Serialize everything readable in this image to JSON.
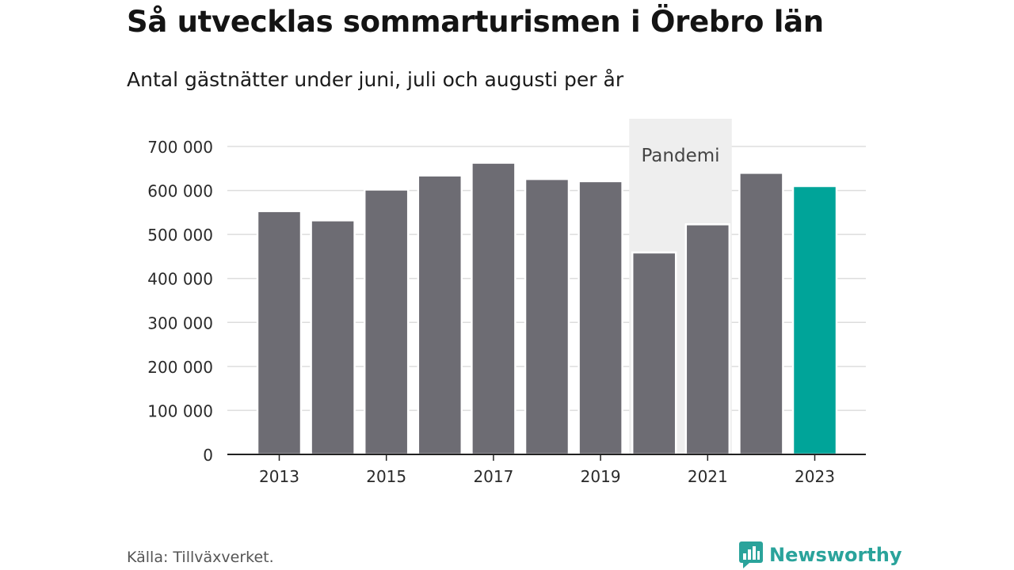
{
  "header": {
    "title": "Så utvecklas sommarturismen i Örebro län",
    "subtitle": "Antal gästnätter under juni, juli och augusti per år"
  },
  "footer": {
    "source": "Källa: Tillväxverket.",
    "brand": "Newsworthy"
  },
  "colors": {
    "bar": "#6d6c73",
    "highlight": "#00a499",
    "shade": "#eeeeee",
    "grid": "#dddddd",
    "axis": "#222222",
    "brand": "#2aa39b"
  },
  "chart_data": {
    "type": "bar",
    "categories": [
      "2013",
      "2014",
      "2015",
      "2016",
      "2017",
      "2018",
      "2019",
      "2020",
      "2021",
      "2022",
      "2023"
    ],
    "values": [
      553000,
      532000,
      602000,
      634000,
      663000,
      626000,
      621000,
      459000,
      523000,
      640000,
      610000
    ],
    "highlight_category": "2023",
    "x_tick_labels": [
      "2013",
      "2015",
      "2017",
      "2019",
      "2021",
      "2023"
    ],
    "y_ticks": [
      0,
      100000,
      200000,
      300000,
      400000,
      500000,
      600000,
      700000
    ],
    "y_tick_labels": [
      "0",
      "100 000",
      "200 000",
      "300 000",
      "400 000",
      "500 000",
      "600 000",
      "700 000"
    ],
    "ylim": [
      0,
      700000
    ],
    "grid": true,
    "annotation": {
      "label": "Pandemi",
      "categories": [
        "2020",
        "2021"
      ]
    }
  }
}
